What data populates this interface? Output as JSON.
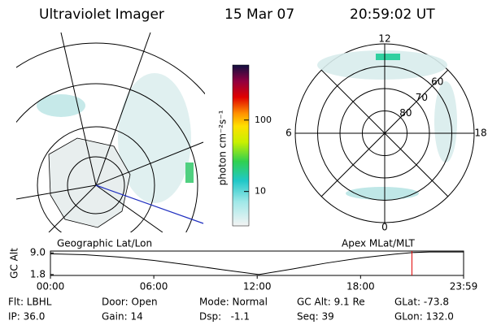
{
  "header": {
    "title": "Ultraviolet Imager",
    "date": "15 Mar 07",
    "time": "20:59:02 UT"
  },
  "left_map": {
    "label": "Geographic Lat/Lon"
  },
  "colorbar": {
    "label": "photon cm⁻²s⁻¹",
    "log": true,
    "lim": [
      3.3,
      590
    ],
    "ticks": [
      10,
      100
    ]
  },
  "right_map": {
    "label": "Apex MLat/MLT",
    "mlt_ticks": [
      12,
      18,
      6,
      0
    ],
    "mlat_ticks": [
      80,
      70,
      60
    ]
  },
  "chart_data": {
    "type": "line",
    "y_label": "GC Alt",
    "x": [
      0,
      2,
      4,
      6,
      8,
      10,
      12.1,
      14,
      16,
      18,
      20,
      21,
      22,
      23.98
    ],
    "values": [
      8.7,
      8.4,
      7.6,
      6.5,
      5.0,
      3.4,
      1.8,
      3.6,
      5.6,
      7.3,
      8.6,
      9.1,
      9.3,
      9.3
    ],
    "color": "#000000",
    "xlim": [
      0,
      23.98
    ],
    "xticks": [
      {
        "value": 0,
        "label": "00:00"
      },
      {
        "value": 6,
        "label": "06:00"
      },
      {
        "value": 12,
        "label": "12:00"
      },
      {
        "value": 18,
        "label": "18:00"
      },
      {
        "value": 23.98,
        "label": "23:59"
      }
    ],
    "ylim": [
      1.5,
      9.6
    ],
    "yticks": [
      {
        "value": 9,
        "label": "9.0"
      },
      {
        "value": 1.8,
        "label": "1.8"
      }
    ],
    "marker": {
      "x": 20.98,
      "color": "#e00000"
    }
  },
  "footer": {
    "rows": [
      [
        "Flt: LBHL",
        "Door: Open",
        "Mode: Normal",
        "GC Alt: 9.1 Re",
        "GLat: -73.8"
      ],
      [
        "IP: 36.0",
        "Gain: 14",
        "Dsp:   -1.1",
        "Seq: 39",
        "GLon: 132.0"
      ]
    ]
  }
}
